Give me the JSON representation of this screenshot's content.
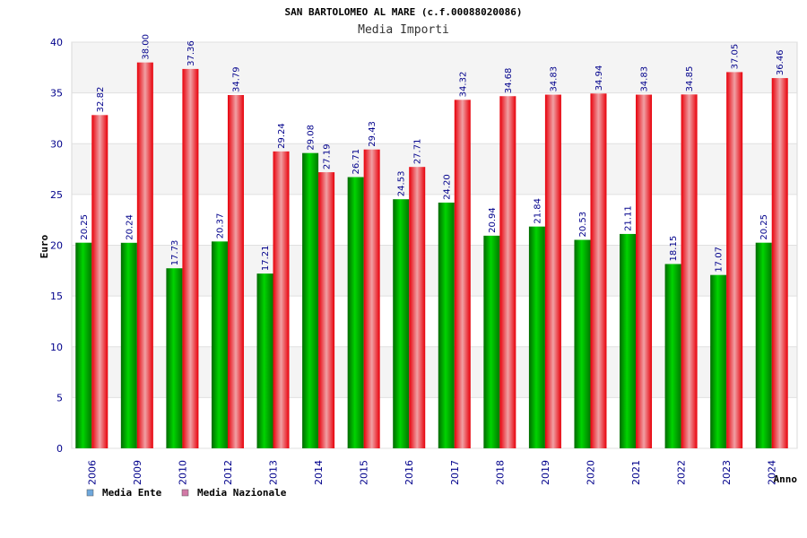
{
  "chart_data": {
    "type": "bar",
    "title": "SAN BARTOLOMEO AL MARE (c.f.00088020086)",
    "subtitle": "Media Importi",
    "xlabel": "Anno",
    "ylabel": "Euro",
    "ylim": [
      0,
      40
    ],
    "yticks": [
      0,
      5,
      10,
      15,
      20,
      25,
      30,
      35,
      40
    ],
    "grid": true,
    "legend_position": "bottom-left",
    "categories": [
      "2006",
      "2009",
      "2010",
      "2012",
      "2013",
      "2014",
      "2015",
      "2016",
      "2017",
      "2018",
      "2019",
      "2020",
      "2021",
      "2022",
      "2023",
      "2024"
    ],
    "series": [
      {
        "name": "Media Ente",
        "color": "#00c000",
        "legend_color": "#6fa8dc",
        "values": [
          20.25,
          20.24,
          17.73,
          20.37,
          17.21,
          29.08,
          26.71,
          24.53,
          24.2,
          20.94,
          21.84,
          20.53,
          21.11,
          18.15,
          17.07,
          20.25
        ],
        "labels": [
          "20.25",
          "20.24",
          "17.73",
          "20.37",
          "17.21",
          "29.08",
          "26.71",
          "24.53",
          "24.20",
          "20.94",
          "21.84",
          "20.53",
          "21.11",
          "18.15",
          "17.07",
          "20.25"
        ]
      },
      {
        "name": "Media Nazionale",
        "color": "#e8131c",
        "legend_color": "#d279a6",
        "values": [
          32.82,
          38.0,
          37.36,
          34.79,
          29.24,
          27.19,
          29.43,
          27.71,
          34.32,
          34.68,
          34.83,
          34.94,
          34.83,
          34.85,
          37.05,
          36.46
        ],
        "labels": [
          "32.82",
          "38.00",
          "37.36",
          "34.79",
          "29.24",
          "27.19",
          "29.43",
          "27.71",
          "34.32",
          "34.68",
          "34.83",
          "34.94",
          "34.83",
          "34.85",
          "37.05",
          "36.46"
        ]
      }
    ]
  }
}
